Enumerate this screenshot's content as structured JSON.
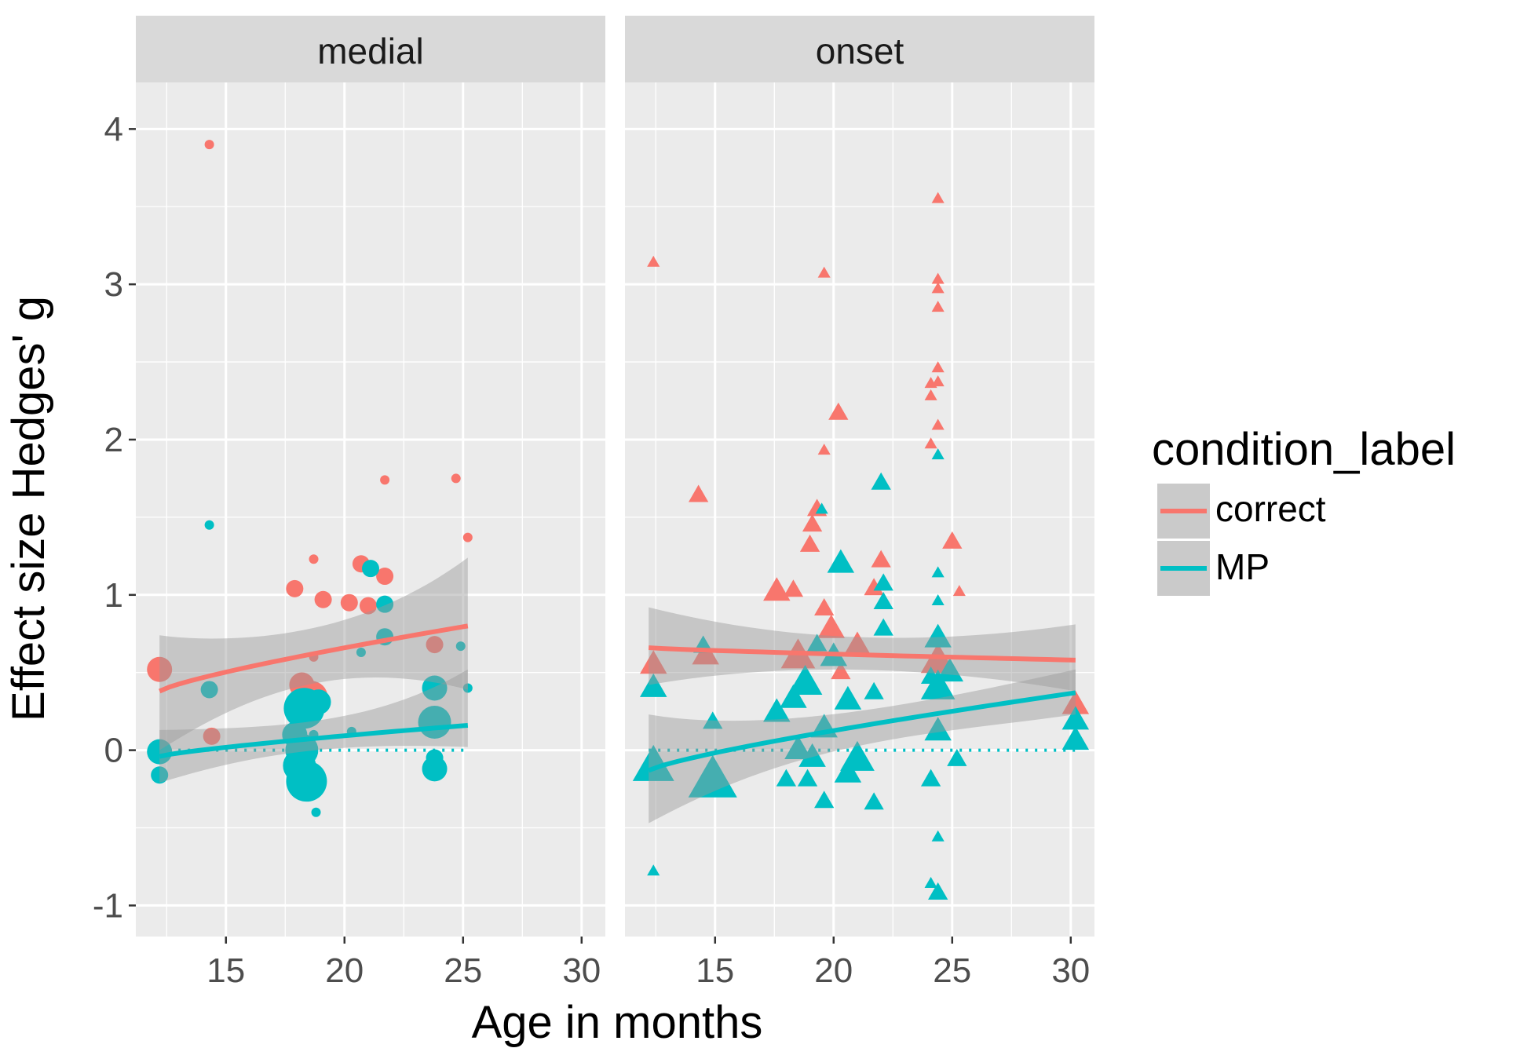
{
  "chart_data": {
    "type": "scatter",
    "xlabel": "Age in months",
    "ylabel": "Effect size Hedges' g",
    "xlim": [
      11.2,
      31.0
    ],
    "ylim": [
      -1.2,
      4.3
    ],
    "x_ticks": [
      15,
      20,
      25,
      30
    ],
    "y_ticks": [
      -1,
      0,
      1,
      2,
      3,
      4
    ],
    "x_tick_labels": [
      "15",
      "20",
      "25",
      "30"
    ],
    "y_tick_labels": [
      "-1",
      "0",
      "1",
      "2",
      "3",
      "4"
    ],
    "grid": true,
    "panels": [
      "medial",
      "onset"
    ],
    "legend": {
      "title": "condition_label",
      "position": "right",
      "items": [
        {
          "label": "correct",
          "color": "#F8766D"
        },
        {
          "label": "MP",
          "color": "#00BFC4"
        }
      ]
    },
    "colors": {
      "correct": "#F8766D",
      "MP": "#00BFC4",
      "panel_bg": "#EBEBEB",
      "strip_bg": "#D9D9D9",
      "ribbon": "#999999"
    },
    "reference_line": {
      "y": 0,
      "style": "dotted"
    },
    "series": [
      {
        "panel": "medial",
        "condition": "correct",
        "marker": "circle",
        "fit": {
          "x": [
            12.2,
            25.2
          ],
          "y": [
            0.38,
            0.8
          ],
          "ci_low": [
            0.0,
            0.39
          ],
          "ci_high": [
            0.74,
            1.24
          ]
        },
        "points": [
          {
            "x": 14.3,
            "y": 3.9,
            "w": 1
          },
          {
            "x": 12.2,
            "y": 0.52,
            "w": 3
          },
          {
            "x": 14.4,
            "y": 0.09,
            "w": 2
          },
          {
            "x": 17.9,
            "y": 1.04,
            "w": 2
          },
          {
            "x": 18.7,
            "y": 1.23,
            "w": 1
          },
          {
            "x": 19.1,
            "y": 0.97,
            "w": 2
          },
          {
            "x": 20.2,
            "y": 0.95,
            "w": 2
          },
          {
            "x": 20.7,
            "y": 1.2,
            "w": 2
          },
          {
            "x": 21.0,
            "y": 0.93,
            "w": 2
          },
          {
            "x": 21.7,
            "y": 1.74,
            "w": 1
          },
          {
            "x": 21.7,
            "y": 1.12,
            "w": 2
          },
          {
            "x": 24.7,
            "y": 1.75,
            "w": 1
          },
          {
            "x": 25.2,
            "y": 1.37,
            "w": 1
          },
          {
            "x": 23.8,
            "y": 0.68,
            "w": 2
          },
          {
            "x": 18.2,
            "y": 0.42,
            "w": 3
          },
          {
            "x": 18.6,
            "y": 0.34,
            "w": 4
          },
          {
            "x": 18.7,
            "y": 0.6,
            "w": 1
          }
        ]
      },
      {
        "panel": "medial",
        "condition": "MP",
        "marker": "circle",
        "fit": {
          "x": [
            12.2,
            25.2
          ],
          "y": [
            -0.04,
            0.16
          ],
          "ci_low": [
            -0.21,
            0.02
          ],
          "ci_high": [
            0.13,
            0.52
          ]
        },
        "points": [
          {
            "x": 14.3,
            "y": 1.45,
            "w": 1
          },
          {
            "x": 14.3,
            "y": 0.39,
            "w": 2
          },
          {
            "x": 12.2,
            "y": -0.01,
            "w": 3
          },
          {
            "x": 12.2,
            "y": -0.16,
            "w": 2
          },
          {
            "x": 18.3,
            "y": 0.27,
            "w": 5
          },
          {
            "x": 18.9,
            "y": 0.31,
            "w": 3
          },
          {
            "x": 17.9,
            "y": 0.1,
            "w": 3
          },
          {
            "x": 18.2,
            "y": 0.0,
            "w": 4
          },
          {
            "x": 18.1,
            "y": -0.1,
            "w": 4
          },
          {
            "x": 18.4,
            "y": -0.2,
            "w": 5
          },
          {
            "x": 18.8,
            "y": -0.4,
            "w": 1
          },
          {
            "x": 18.7,
            "y": 0.1,
            "w": 1
          },
          {
            "x": 20.3,
            "y": 0.12,
            "w": 1
          },
          {
            "x": 20.7,
            "y": 0.63,
            "w": 1
          },
          {
            "x": 21.1,
            "y": 1.17,
            "w": 2
          },
          {
            "x": 21.7,
            "y": 0.94,
            "w": 2
          },
          {
            "x": 21.7,
            "y": 0.73,
            "w": 2
          },
          {
            "x": 23.8,
            "y": 0.4,
            "w": 3
          },
          {
            "x": 23.8,
            "y": 0.18,
            "w": 4
          },
          {
            "x": 23.8,
            "y": -0.12,
            "w": 3
          },
          {
            "x": 23.8,
            "y": -0.05,
            "w": 2
          },
          {
            "x": 24.9,
            "y": 0.67,
            "w": 1
          },
          {
            "x": 25.2,
            "y": 0.4,
            "w": 1
          }
        ]
      },
      {
        "panel": "onset",
        "condition": "correct",
        "marker": "triangle",
        "fit": {
          "x": [
            12.2,
            30.2
          ],
          "y": [
            0.66,
            0.58
          ],
          "ci_low": [
            0.42,
            0.38
          ],
          "ci_high": [
            0.92,
            0.81
          ]
        },
        "points": [
          {
            "x": 12.4,
            "y": 3.14,
            "w": 1
          },
          {
            "x": 12.4,
            "y": 0.55,
            "w": 3
          },
          {
            "x": 14.3,
            "y": 1.64,
            "w": 2
          },
          {
            "x": 14.6,
            "y": 0.61,
            "w": 3
          },
          {
            "x": 17.6,
            "y": 1.02,
            "w": 3
          },
          {
            "x": 18.3,
            "y": 1.03,
            "w": 2
          },
          {
            "x": 18.5,
            "y": 0.6,
            "w": 4
          },
          {
            "x": 19.0,
            "y": 1.32,
            "w": 2
          },
          {
            "x": 19.1,
            "y": 1.45,
            "w": 2
          },
          {
            "x": 19.3,
            "y": 1.55,
            "w": 2
          },
          {
            "x": 19.6,
            "y": 3.07,
            "w": 1
          },
          {
            "x": 19.6,
            "y": 1.93,
            "w": 1
          },
          {
            "x": 19.6,
            "y": 0.91,
            "w": 2
          },
          {
            "x": 19.9,
            "y": 0.78,
            "w": 3
          },
          {
            "x": 20.2,
            "y": 2.17,
            "w": 2
          },
          {
            "x": 20.3,
            "y": 0.5,
            "w": 2
          },
          {
            "x": 21.0,
            "y": 0.67,
            "w": 3
          },
          {
            "x": 21.7,
            "y": 1.04,
            "w": 2
          },
          {
            "x": 22.0,
            "y": 1.22,
            "w": 2
          },
          {
            "x": 24.1,
            "y": 2.36,
            "w": 1
          },
          {
            "x": 24.1,
            "y": 2.28,
            "w": 1
          },
          {
            "x": 24.1,
            "y": 1.97,
            "w": 1
          },
          {
            "x": 24.4,
            "y": 3.55,
            "w": 1
          },
          {
            "x": 24.4,
            "y": 3.03,
            "w": 1
          },
          {
            "x": 24.4,
            "y": 2.97,
            "w": 1
          },
          {
            "x": 24.4,
            "y": 2.85,
            "w": 1
          },
          {
            "x": 24.4,
            "y": 2.46,
            "w": 1
          },
          {
            "x": 24.4,
            "y": 2.37,
            "w": 1
          },
          {
            "x": 24.4,
            "y": 2.09,
            "w": 1
          },
          {
            "x": 24.4,
            "y": 0.57,
            "w": 4
          },
          {
            "x": 25.0,
            "y": 1.34,
            "w": 2
          },
          {
            "x": 25.3,
            "y": 1.02,
            "w": 1
          },
          {
            "x": 30.2,
            "y": 0.29,
            "w": 3
          }
        ]
      },
      {
        "panel": "onset",
        "condition": "MP",
        "marker": "triangle",
        "fit": {
          "x": [
            12.2,
            30.2
          ],
          "y": [
            -0.13,
            0.37
          ],
          "ci_low": [
            -0.47,
            0.23
          ],
          "ci_high": [
            0.23,
            0.52
          ]
        },
        "points": [
          {
            "x": 12.4,
            "y": 0.4,
            "w": 3
          },
          {
            "x": 12.4,
            "y": -0.11,
            "w": 5
          },
          {
            "x": 12.4,
            "y": -0.78,
            "w": 1
          },
          {
            "x": 14.5,
            "y": 0.67,
            "w": 2
          },
          {
            "x": 14.9,
            "y": 0.18,
            "w": 2
          },
          {
            "x": 14.9,
            "y": -0.2,
            "w": 6
          },
          {
            "x": 17.6,
            "y": 0.24,
            "w": 3
          },
          {
            "x": 18.0,
            "y": -0.19,
            "w": 2
          },
          {
            "x": 18.3,
            "y": 0.33,
            "w": 3
          },
          {
            "x": 18.5,
            "y": 0.0,
            "w": 3
          },
          {
            "x": 18.8,
            "y": 0.43,
            "w": 4
          },
          {
            "x": 18.9,
            "y": -0.19,
            "w": 2
          },
          {
            "x": 19.1,
            "y": -0.05,
            "w": 3
          },
          {
            "x": 19.3,
            "y": 0.68,
            "w": 2
          },
          {
            "x": 19.5,
            "y": 1.55,
            "w": 1
          },
          {
            "x": 19.6,
            "y": -0.33,
            "w": 2
          },
          {
            "x": 19.6,
            "y": 0.14,
            "w": 3
          },
          {
            "x": 20.0,
            "y": 0.6,
            "w": 3
          },
          {
            "x": 20.3,
            "y": 1.2,
            "w": 3
          },
          {
            "x": 20.6,
            "y": 0.32,
            "w": 3
          },
          {
            "x": 20.6,
            "y": -0.15,
            "w": 3
          },
          {
            "x": 21.0,
            "y": -0.06,
            "w": 4
          },
          {
            "x": 21.7,
            "y": 0.37,
            "w": 2
          },
          {
            "x": 21.7,
            "y": -0.34,
            "w": 2
          },
          {
            "x": 22.0,
            "y": 1.72,
            "w": 2
          },
          {
            "x": 22.1,
            "y": 1.07,
            "w": 2
          },
          {
            "x": 22.1,
            "y": 0.95,
            "w": 2
          },
          {
            "x": 22.1,
            "y": 0.78,
            "w": 2
          },
          {
            "x": 24.1,
            "y": 0.47,
            "w": 2
          },
          {
            "x": 24.1,
            "y": -0.19,
            "w": 2
          },
          {
            "x": 24.1,
            "y": -0.86,
            "w": 1
          },
          {
            "x": 24.4,
            "y": 1.9,
            "w": 1
          },
          {
            "x": 24.4,
            "y": 1.14,
            "w": 1
          },
          {
            "x": 24.4,
            "y": 0.96,
            "w": 1
          },
          {
            "x": 24.4,
            "y": 0.72,
            "w": 3
          },
          {
            "x": 24.4,
            "y": 0.4,
            "w": 4
          },
          {
            "x": 24.4,
            "y": 0.12,
            "w": 3
          },
          {
            "x": 24.4,
            "y": -0.56,
            "w": 1
          },
          {
            "x": 24.4,
            "y": -0.92,
            "w": 2
          },
          {
            "x": 24.9,
            "y": 0.5,
            "w": 3
          },
          {
            "x": 25.2,
            "y": -0.06,
            "w": 2
          },
          {
            "x": 30.2,
            "y": 0.19,
            "w": 3
          },
          {
            "x": 30.2,
            "y": 0.06,
            "w": 3
          }
        ]
      }
    ]
  }
}
